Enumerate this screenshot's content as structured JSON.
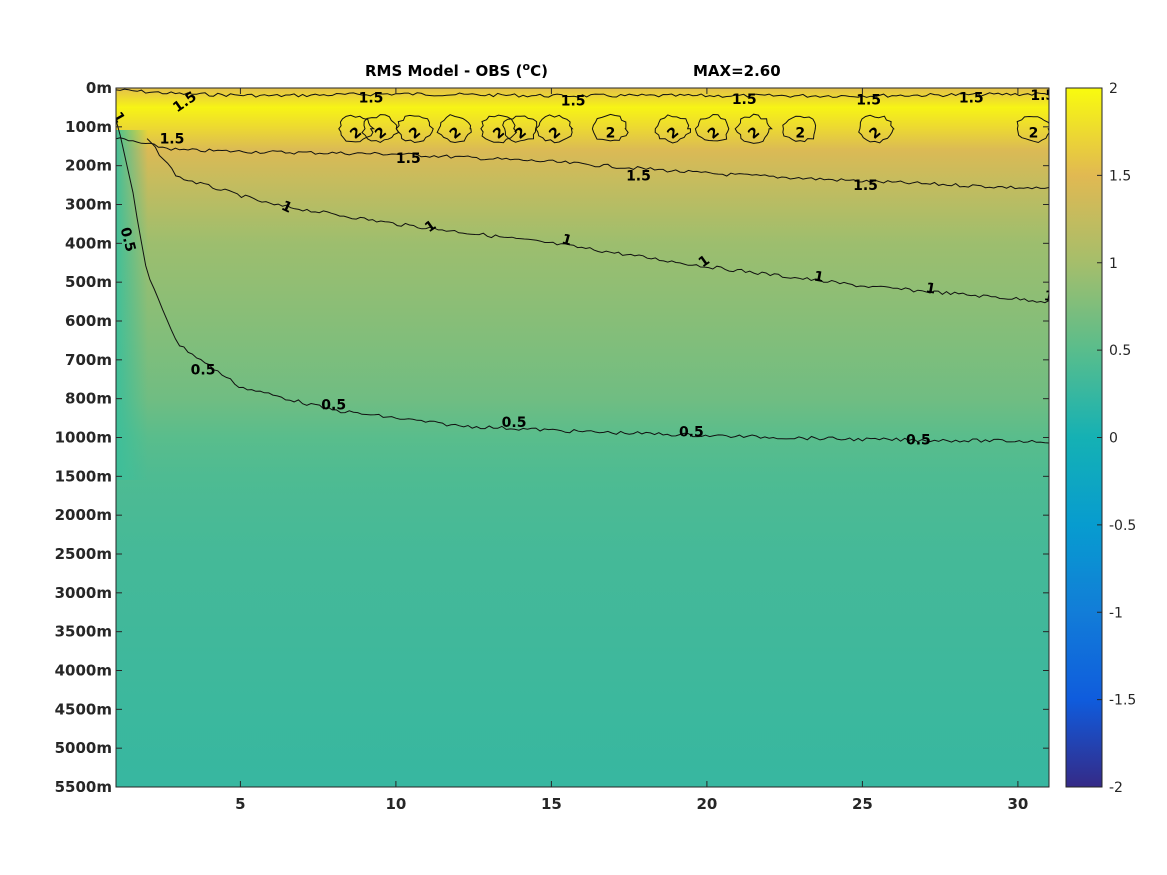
{
  "chart_data": {
    "type": "heatmap",
    "title": "RMS Model - OBS (",
    "title_sup": "o",
    "title_unit": "C)",
    "title_max": "MAX=2.60",
    "x_ticks": [
      "5",
      "10",
      "15",
      "20",
      "25",
      "30"
    ],
    "x_tick_values": [
      5,
      10,
      15,
      20,
      25,
      30
    ],
    "xlim": [
      1,
      31
    ],
    "y_ticks": [
      "0m",
      "100m",
      "200m",
      "300m",
      "400m",
      "500m",
      "600m",
      "700m",
      "800m",
      "1000m",
      "1500m",
      "2000m",
      "2500m",
      "3000m",
      "3500m",
      "4000m",
      "4500m",
      "5000m",
      "5500m"
    ],
    "colorbar": {
      "ticks": [
        "2",
        "1.5",
        "1",
        "0.5",
        "0",
        "-0.5",
        "-1",
        "-1.5",
        "-2"
      ],
      "tick_values": [
        2,
        1.5,
        1,
        0.5,
        0,
        -0.5,
        -1,
        -1.5,
        -2
      ],
      "range": [
        -2,
        2
      ],
      "colormap": "parula"
    },
    "contour_levels": [
      0.5,
      1,
      1.5,
      2
    ],
    "contours": [
      {
        "level": 1.5,
        "label": "1.5",
        "x": [
          1,
          3,
          6,
          10,
          15,
          20,
          25,
          31
        ],
        "depth_index": [
          0.05,
          0.15,
          0.2,
          0.15,
          0.2,
          0.2,
          0.2,
          0.15
        ]
      },
      {
        "level": 1.5,
        "label": "1.5",
        "x": [
          1,
          3,
          6,
          10,
          15,
          20,
          25,
          31
        ],
        "depth_index": [
          1.3,
          1.6,
          1.65,
          1.7,
          1.9,
          2.2,
          2.4,
          2.6
        ]
      },
      {
        "level": 1,
        "label": "1",
        "x": [
          2,
          3,
          6,
          10,
          15,
          20,
          25,
          31
        ],
        "depth_index": [
          1.3,
          2.3,
          3.0,
          3.5,
          4.0,
          4.6,
          5.1,
          5.5
        ]
      },
      {
        "level": 0.5,
        "label": "0.5",
        "x": [
          1,
          1.5,
          2,
          3,
          5,
          8,
          12,
          16,
          20,
          25,
          31
        ],
        "depth_index": [
          0.8,
          2.5,
          4.8,
          6.6,
          7.7,
          8.3,
          8.7,
          8.85,
          8.95,
          9.05,
          9.1
        ]
      }
    ],
    "contour_labels": [
      {
        "text": "1.5",
        "x": 3.2,
        "d": 0.35,
        "rot": -35
      },
      {
        "text": "1.5",
        "x": 9.2,
        "d": 0.25,
        "rot": 0
      },
      {
        "text": "1.5",
        "x": 15.7,
        "d": 0.32,
        "rot": 0
      },
      {
        "text": "1.5",
        "x": 21.2,
        "d": 0.28,
        "rot": 0
      },
      {
        "text": "1.5",
        "x": 25.2,
        "d": 0.3,
        "rot": 0
      },
      {
        "text": "1.5",
        "x": 28.5,
        "d": 0.25,
        "rot": 0
      },
      {
        "text": "1.5",
        "x": 30.8,
        "d": 0.18,
        "rot": 0
      },
      {
        "text": "1.5",
        "x": 2.8,
        "d": 1.3,
        "rot": 0
      },
      {
        "text": "1.5",
        "x": 10.4,
        "d": 1.8,
        "rot": 0
      },
      {
        "text": "1.5",
        "x": 17.8,
        "d": 2.25,
        "rot": 0
      },
      {
        "text": "1.5",
        "x": 25.1,
        "d": 2.5,
        "rot": 0
      },
      {
        "text": "1",
        "x": 1.1,
        "d": 0.75,
        "rot": 60
      },
      {
        "text": "1",
        "x": 6.5,
        "d": 3.05,
        "rot": 25
      },
      {
        "text": "1",
        "x": 11.1,
        "d": 3.55,
        "rot": -35
      },
      {
        "text": "1",
        "x": 15.5,
        "d": 3.9,
        "rot": 15
      },
      {
        "text": "1",
        "x": 19.9,
        "d": 4.45,
        "rot": -35
      },
      {
        "text": "1",
        "x": 23.6,
        "d": 4.85,
        "rot": 10
      },
      {
        "text": "1",
        "x": 27.2,
        "d": 5.15,
        "rot": 10
      },
      {
        "text": "1",
        "x": 31,
        "d": 5.35,
        "rot": 10
      },
      {
        "text": "0.5",
        "x": 1.4,
        "d": 3.9,
        "rot": 75
      },
      {
        "text": "0.5",
        "x": 3.8,
        "d": 7.25,
        "rot": 0
      },
      {
        "text": "0.5",
        "x": 8.0,
        "d": 8.15,
        "rot": 0
      },
      {
        "text": "0.5",
        "x": 13.8,
        "d": 8.6,
        "rot": 0
      },
      {
        "text": "0.5",
        "x": 19.5,
        "d": 8.85,
        "rot": 0
      },
      {
        "text": "0.5",
        "x": 26.8,
        "d": 9.05,
        "rot": 0
      }
    ],
    "two_labels": [
      {
        "x": 8.7,
        "rot": -40
      },
      {
        "x": 9.5,
        "rot": -40
      },
      {
        "x": 10.6,
        "rot": -40
      },
      {
        "x": 11.9,
        "rot": -40
      },
      {
        "x": 13.3,
        "rot": -40
      },
      {
        "x": 14.0,
        "rot": -40
      },
      {
        "x": 15.1,
        "rot": -40
      },
      {
        "x": 16.9,
        "rot": 0
      },
      {
        "x": 18.9,
        "rot": -40
      },
      {
        "x": 20.2,
        "rot": -40
      },
      {
        "x": 21.5,
        "rot": -40
      },
      {
        "x": 23.0,
        "rot": 0
      },
      {
        "x": 25.4,
        "rot": -40
      },
      {
        "x": 30.5,
        "rot": 0
      }
    ],
    "field_rows": [
      {
        "d": 0.0,
        "v": 1.55
      },
      {
        "d": 0.5,
        "v": 1.95
      },
      {
        "d": 1.0,
        "v": 1.75
      },
      {
        "d": 1.6,
        "v": 1.45
      },
      {
        "d": 2.5,
        "v": 1.25
      },
      {
        "d": 4.0,
        "v": 0.95
      },
      {
        "d": 6.0,
        "v": 0.8
      },
      {
        "d": 8.0,
        "v": 0.65
      },
      {
        "d": 9.0,
        "v": 0.5
      },
      {
        "d": 10.0,
        "v": 0.42
      },
      {
        "d": 12.0,
        "v": 0.35
      },
      {
        "d": 15.0,
        "v": 0.3
      },
      {
        "d": 18.0,
        "v": 0.25
      }
    ]
  }
}
